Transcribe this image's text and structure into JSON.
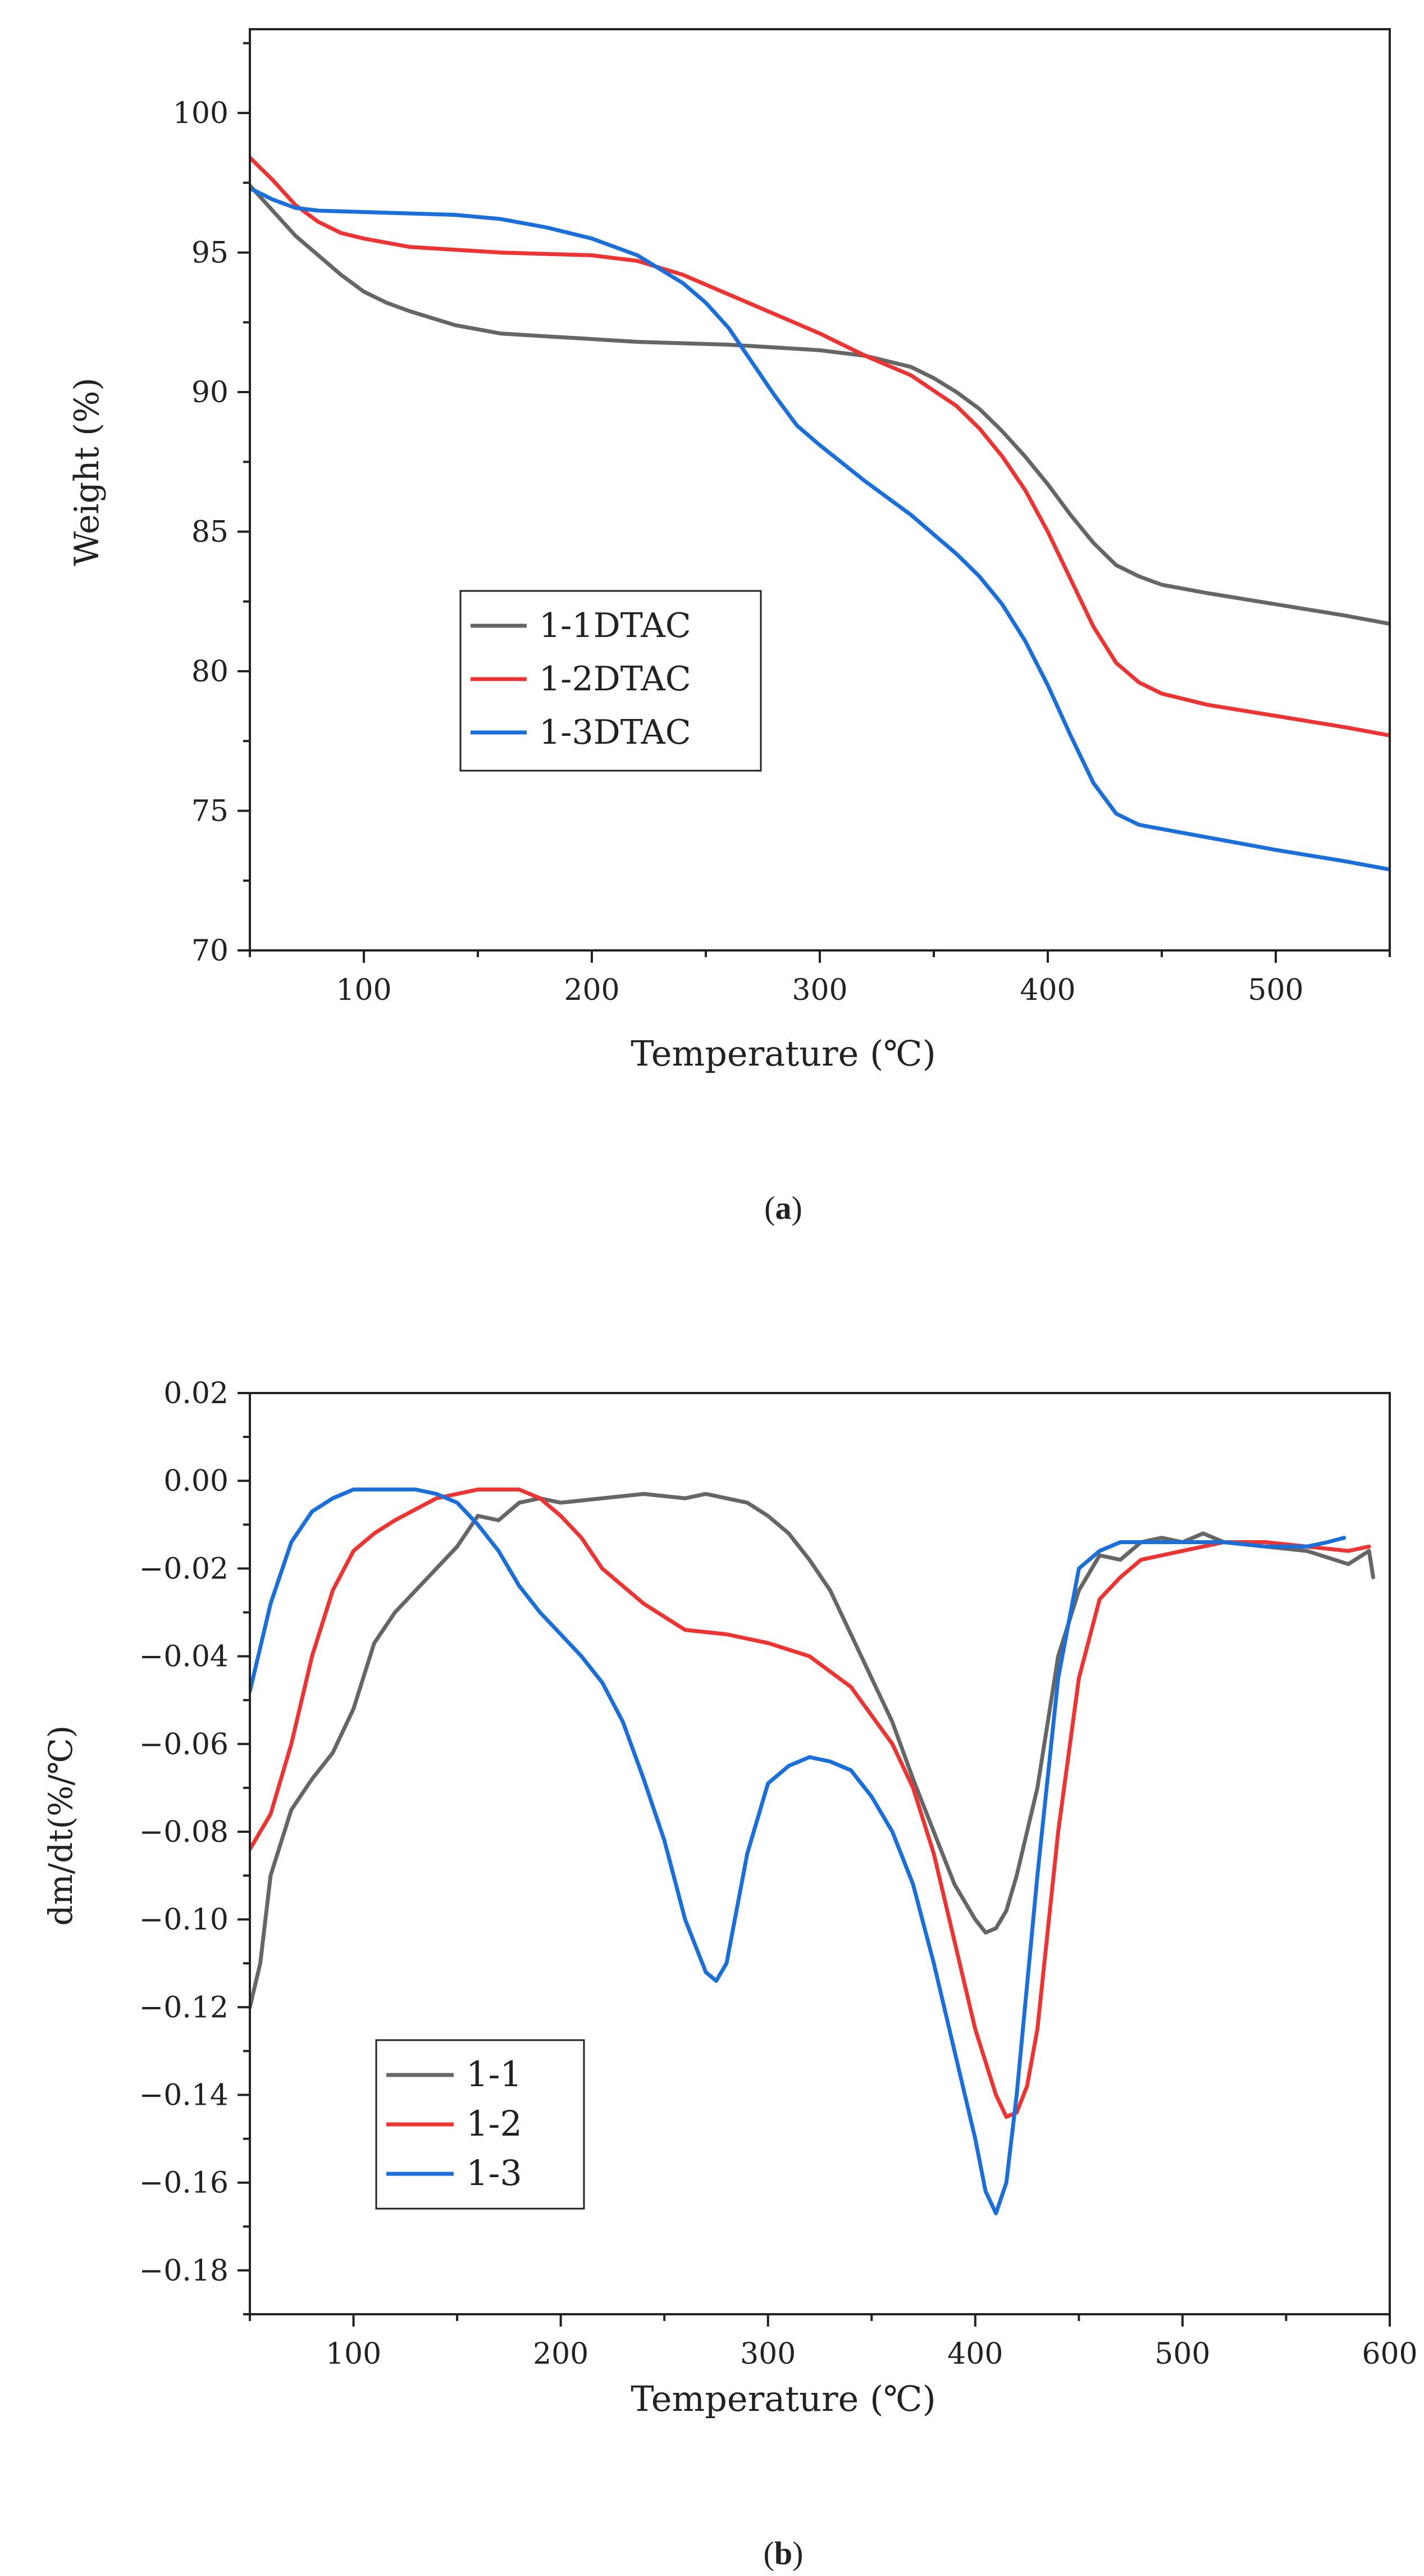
{
  "chart_data": [
    {
      "id": "a",
      "type": "line",
      "title": "",
      "caption": {
        "open": "(",
        "letter": "a",
        "close": ")"
      },
      "xlabel": "Temperature (℃)",
      "ylabel": "Weight (%)",
      "xlim": [
        50,
        550
      ],
      "ylim": [
        70,
        103
      ],
      "xticks": [
        100,
        200,
        300,
        400,
        500
      ],
      "yticks": [
        70,
        75,
        80,
        85,
        90,
        95,
        100
      ],
      "legend": "center-left",
      "series": [
        {
          "name": "1-1DTAC",
          "color": "#666666",
          "x": [
            50,
            60,
            70,
            80,
            90,
            100,
            110,
            120,
            140,
            160,
            180,
            200,
            220,
            240,
            260,
            280,
            300,
            320,
            330,
            340,
            350,
            360,
            370,
            380,
            390,
            400,
            410,
            420,
            430,
            440,
            450,
            470,
            500,
            530,
            550
          ],
          "y": [
            97.4,
            96.5,
            95.6,
            94.9,
            94.2,
            93.6,
            93.2,
            92.9,
            92.4,
            92.1,
            92.0,
            91.9,
            91.8,
            91.75,
            91.7,
            91.6,
            91.5,
            91.3,
            91.1,
            90.9,
            90.5,
            90.0,
            89.4,
            88.6,
            87.7,
            86.7,
            85.6,
            84.6,
            83.8,
            83.4,
            83.1,
            82.8,
            82.4,
            82.0,
            81.7
          ]
        },
        {
          "name": "1-2DTAC",
          "color": "#ee3333",
          "x": [
            50,
            60,
            70,
            80,
            90,
            100,
            120,
            140,
            160,
            180,
            200,
            220,
            240,
            260,
            280,
            300,
            320,
            340,
            360,
            370,
            380,
            390,
            400,
            410,
            420,
            430,
            440,
            450,
            470,
            500,
            530,
            550
          ],
          "y": [
            98.4,
            97.6,
            96.7,
            96.1,
            95.7,
            95.5,
            95.2,
            95.1,
            95.0,
            94.95,
            94.9,
            94.7,
            94.2,
            93.5,
            92.8,
            92.1,
            91.3,
            90.6,
            89.5,
            88.7,
            87.7,
            86.5,
            85.0,
            83.3,
            81.6,
            80.3,
            79.6,
            79.2,
            78.8,
            78.4,
            78.0,
            77.7
          ]
        },
        {
          "name": "1-3DTAC",
          "color": "#1a6fdb",
          "x": [
            50,
            60,
            70,
            80,
            100,
            120,
            140,
            160,
            180,
            200,
            220,
            240,
            250,
            260,
            270,
            280,
            290,
            300,
            320,
            340,
            360,
            370,
            380,
            390,
            400,
            410,
            420,
            430,
            440,
            460,
            500,
            530,
            550
          ],
          "y": [
            97.3,
            96.9,
            96.6,
            96.5,
            96.45,
            96.4,
            96.35,
            96.2,
            95.9,
            95.5,
            94.9,
            93.9,
            93.2,
            92.3,
            91.1,
            89.9,
            88.8,
            88.1,
            86.8,
            85.6,
            84.2,
            83.4,
            82.4,
            81.1,
            79.5,
            77.7,
            76.0,
            74.9,
            74.5,
            74.2,
            73.6,
            73.2,
            72.9
          ]
        }
      ]
    },
    {
      "id": "b",
      "type": "line",
      "title": "",
      "caption": {
        "open": "(",
        "letter": "b",
        "close": ")"
      },
      "xlabel": "Temperature (℃)",
      "ylabel": "dm/dt(%/℃)",
      "xlim": [
        50,
        600
      ],
      "ylim": [
        -0.19,
        0.02
      ],
      "xticks": [
        100,
        200,
        300,
        400,
        500,
        600
      ],
      "yticks": [
        0.02,
        0.0,
        -0.02,
        -0.04,
        -0.06,
        -0.08,
        -0.1,
        -0.12,
        -0.14,
        -0.16,
        -0.18
      ],
      "ytick_labels": [
        "0.02",
        "0.00",
        "−0.02",
        "−0.04",
        "−0.06",
        "−0.08",
        "−0.10",
        "−0.12",
        "−0.14",
        "−0.16",
        "−0.18"
      ],
      "legend": "bottom-left",
      "series": [
        {
          "name": "1-1",
          "color": "#666666",
          "x": [
            50,
            55,
            60,
            70,
            80,
            90,
            100,
            110,
            120,
            130,
            140,
            150,
            160,
            170,
            180,
            190,
            200,
            220,
            240,
            260,
            270,
            280,
            290,
            300,
            310,
            320,
            330,
            340,
            350,
            360,
            370,
            380,
            390,
            400,
            405,
            410,
            415,
            420,
            430,
            440,
            450,
            460,
            470,
            480,
            490,
            500,
            510,
            520,
            540,
            560,
            580,
            590,
            592
          ],
          "y": [
            -0.12,
            -0.11,
            -0.09,
            -0.075,
            -0.068,
            -0.062,
            -0.052,
            -0.037,
            -0.03,
            -0.025,
            -0.02,
            -0.015,
            -0.008,
            -0.009,
            -0.005,
            -0.004,
            -0.005,
            -0.004,
            -0.003,
            -0.004,
            -0.003,
            -0.004,
            -0.005,
            -0.008,
            -0.012,
            -0.018,
            -0.025,
            -0.035,
            -0.045,
            -0.055,
            -0.068,
            -0.08,
            -0.092,
            -0.1,
            -0.103,
            -0.102,
            -0.098,
            -0.09,
            -0.07,
            -0.04,
            -0.025,
            -0.017,
            -0.018,
            -0.014,
            -0.013,
            -0.014,
            -0.012,
            -0.014,
            -0.015,
            -0.016,
            -0.019,
            -0.016,
            -0.022
          ]
        },
        {
          "name": "1-2",
          "color": "#ee3333",
          "x": [
            50,
            60,
            70,
            80,
            90,
            100,
            110,
            120,
            140,
            160,
            170,
            180,
            190,
            200,
            210,
            220,
            240,
            260,
            280,
            300,
            320,
            340,
            360,
            370,
            380,
            390,
            400,
            410,
            415,
            420,
            425,
            430,
            440,
            450,
            460,
            470,
            480,
            500,
            520,
            540,
            560,
            580,
            590
          ],
          "y": [
            -0.084,
            -0.076,
            -0.06,
            -0.04,
            -0.025,
            -0.016,
            -0.012,
            -0.009,
            -0.004,
            -0.002,
            -0.002,
            -0.002,
            -0.004,
            -0.008,
            -0.013,
            -0.02,
            -0.028,
            -0.034,
            -0.035,
            -0.037,
            -0.04,
            -0.047,
            -0.06,
            -0.07,
            -0.085,
            -0.105,
            -0.125,
            -0.14,
            -0.145,
            -0.144,
            -0.138,
            -0.125,
            -0.08,
            -0.045,
            -0.027,
            -0.022,
            -0.018,
            -0.016,
            -0.014,
            -0.014,
            -0.015,
            -0.016,
            -0.015
          ]
        },
        {
          "name": "1-3",
          "color": "#1a6fdb",
          "x": [
            50,
            55,
            60,
            70,
            80,
            90,
            100,
            110,
            120,
            130,
            140,
            150,
            160,
            170,
            180,
            190,
            200,
            210,
            220,
            230,
            240,
            250,
            260,
            270,
            275,
            280,
            290,
            300,
            310,
            320,
            330,
            340,
            350,
            360,
            370,
            380,
            390,
            400,
            405,
            410,
            415,
            420,
            430,
            440,
            450,
            460,
            470,
            480,
            500,
            520,
            540,
            560,
            570,
            578
          ],
          "y": [
            -0.048,
            -0.038,
            -0.028,
            -0.014,
            -0.007,
            -0.004,
            -0.002,
            -0.002,
            -0.002,
            -0.002,
            -0.003,
            -0.005,
            -0.01,
            -0.016,
            -0.024,
            -0.03,
            -0.035,
            -0.04,
            -0.046,
            -0.055,
            -0.068,
            -0.082,
            -0.1,
            -0.112,
            -0.114,
            -0.11,
            -0.085,
            -0.069,
            -0.065,
            -0.063,
            -0.064,
            -0.066,
            -0.072,
            -0.08,
            -0.092,
            -0.11,
            -0.13,
            -0.15,
            -0.162,
            -0.167,
            -0.16,
            -0.14,
            -0.09,
            -0.045,
            -0.02,
            -0.016,
            -0.014,
            -0.014,
            -0.014,
            -0.014,
            -0.015,
            -0.015,
            -0.014,
            -0.013
          ]
        }
      ]
    }
  ]
}
